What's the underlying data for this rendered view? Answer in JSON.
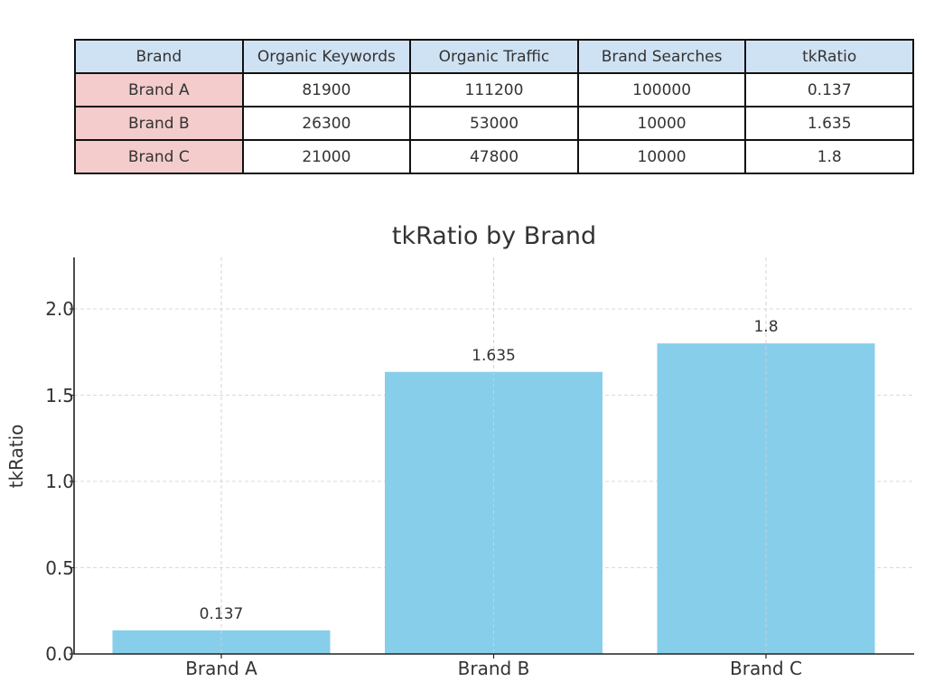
{
  "table": {
    "headers": [
      "Brand",
      "Organic Keywords",
      "Organic Traffic",
      "Brand Searches",
      "tkRatio"
    ],
    "rows": [
      [
        "Brand A",
        "81900",
        "111200",
        "100000",
        "0.137"
      ],
      [
        "Brand B",
        "26300",
        "53000",
        "10000",
        "1.635"
      ],
      [
        "Brand C",
        "21000",
        "47800",
        "10000",
        "1.8"
      ]
    ],
    "colors": {
      "header_bg": "#cfe2f3",
      "rowhead_bg": "#f4cccc"
    }
  },
  "chart": {
    "title": "tkRatio by Brand",
    "ylabel": "tkRatio",
    "yticks": [
      "0.0",
      "0.5",
      "1.0",
      "1.5",
      "2.0"
    ],
    "bar_color": "#87ceeb"
  },
  "chart_data": {
    "type": "bar",
    "title": "tkRatio by Brand",
    "xlabel": "",
    "ylabel": "tkRatio",
    "categories": [
      "Brand A",
      "Brand B",
      "Brand C"
    ],
    "values": [
      0.137,
      1.635,
      1.8
    ],
    "data_labels": [
      "0.137",
      "1.635",
      "1.8"
    ],
    "ylim": [
      0,
      2.3
    ],
    "yticks": [
      0.0,
      0.5,
      1.0,
      1.5,
      2.0
    ],
    "grid": true,
    "legend": null,
    "color": "#87ceeb"
  }
}
